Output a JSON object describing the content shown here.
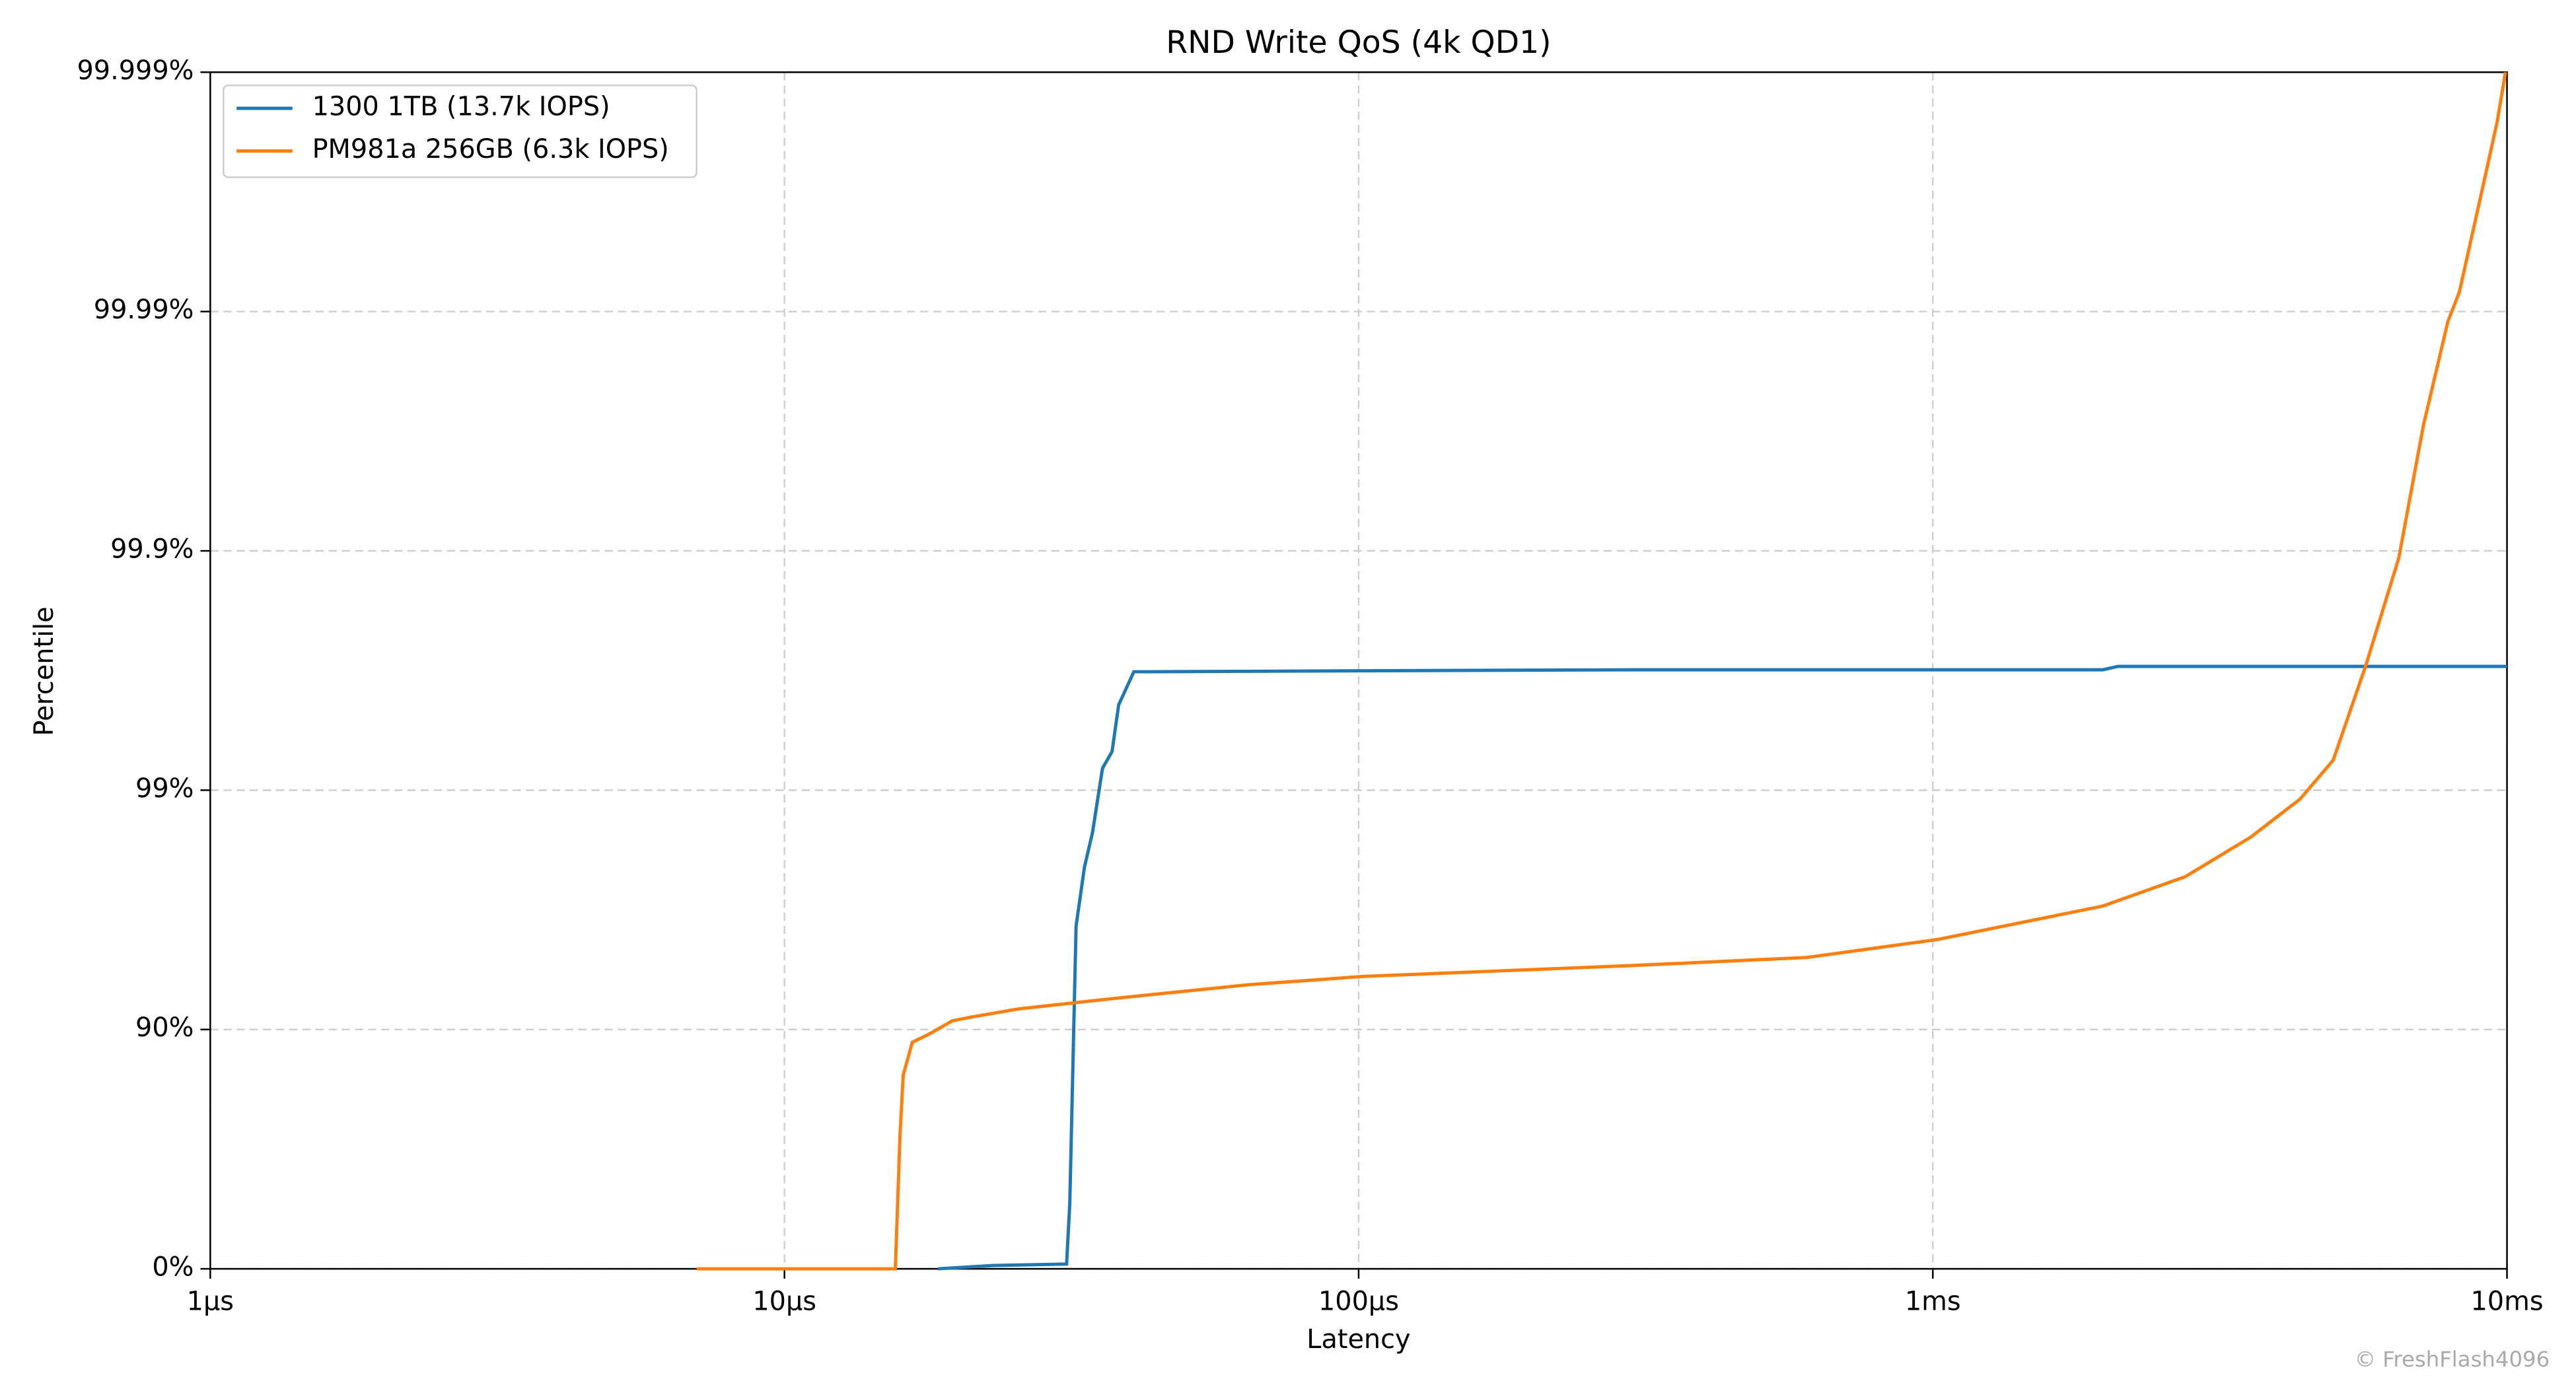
{
  "chart_data": {
    "type": "line",
    "title": "RND Write QoS (4k QD1)",
    "x_label": "Latency",
    "y_label": "Percentile",
    "watermark": "© FreshFlash4096",
    "x_scale": "log",
    "y_scale": "percentile",
    "grid": true,
    "legend": "upper left",
    "xlim": [
      1,
      10000
    ],
    "xticks": [
      {
        "value": 1,
        "label": "1µs"
      },
      {
        "value": 10,
        "label": "10µs"
      },
      {
        "value": 100,
        "label": "100µs"
      },
      {
        "value": 1000,
        "label": "1ms"
      },
      {
        "value": 10000,
        "label": "10ms"
      }
    ],
    "ylim": [
      0,
      99.999
    ],
    "yticks": [
      {
        "value": 0,
        "label": "0%"
      },
      {
        "value": 90,
        "label": "90%"
      },
      {
        "value": 99,
        "label": "99%"
      },
      {
        "value": 99.9,
        "label": "99.9%"
      },
      {
        "value": 99.99,
        "label": "99.99%"
      },
      {
        "value": 99.999,
        "label": "99.999%"
      }
    ],
    "series": [
      {
        "name": "1300 1TB (13.7k IOPS)",
        "color": "#1f77b4",
        "x": [
          18.5,
          23,
          31,
          31.4,
          32.2,
          33.3,
          34.4,
          35.8,
          37.2,
          38.2,
          40.6,
          43.3,
          102,
          302,
          1977,
          2100,
          10000
        ],
        "values": [
          0,
          3.1,
          4.5,
          46.8,
          96.3,
          97.9,
          98.5,
          99.19,
          99.31,
          99.56,
          99.68,
          99.68,
          99.683,
          99.686,
          99.686,
          99.696,
          99.696
        ]
      },
      {
        "name": "PM981a 256GB (6.3k IOPS)",
        "color": "#ff7f0e",
        "x": [
          7.03,
          15.6,
          15.9,
          16.1,
          16.7,
          17.8,
          19.6,
          21.0,
          25.6,
          37.9,
          64.3,
          102,
          302,
          604,
          1023,
          1977,
          2750,
          3580,
          4360,
          4980,
          5680,
          6480,
          7150,
          7890,
          8260,
          9000,
          9620,
          9940
        ],
        "values": [
          0,
          0,
          73,
          84.5,
          88.7,
          89.5,
          90.8,
          91.1,
          91.8,
          92.6,
          93.5,
          94.0,
          94.6,
          95.0,
          95.8,
          96.95,
          97.7,
          98.43,
          98.91,
          99.25,
          99.7,
          99.893,
          99.97,
          99.989,
          99.9917,
          99.9967,
          99.9984,
          99.999
        ]
      }
    ]
  }
}
